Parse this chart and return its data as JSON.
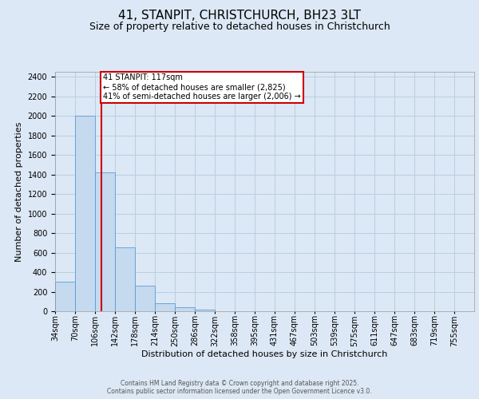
{
  "title_line1": "41, STANPIT, CHRISTCHURCH, BH23 3LT",
  "title_line2": "Size of property relative to detached houses in Christchurch",
  "xlabel": "Distribution of detached houses by size in Christchurch",
  "ylabel": "Number of detached properties",
  "bin_labels": [
    "34sqm",
    "70sqm",
    "106sqm",
    "142sqm",
    "178sqm",
    "214sqm",
    "250sqm",
    "286sqm",
    "322sqm",
    "358sqm",
    "395sqm",
    "431sqm",
    "467sqm",
    "503sqm",
    "539sqm",
    "575sqm",
    "611sqm",
    "647sqm",
    "683sqm",
    "719sqm",
    "755sqm"
  ],
  "bar_heights": [
    300,
    2000,
    1425,
    650,
    260,
    85,
    40,
    20,
    0,
    0,
    0,
    0,
    0,
    0,
    0,
    0,
    0,
    0,
    0,
    0,
    0
  ],
  "bar_color": "#c5d9ef",
  "bar_edge_color": "#5b9bd5",
  "red_line_color": "#cc0000",
  "annotation_text": "41 STANPIT: 117sqm\n← 58% of detached houses are smaller (2,825)\n41% of semi-detached houses are larger (2,006) →",
  "annotation_box_color": "#ffffff",
  "annotation_box_edge_color": "#cc0000",
  "ylim": [
    0,
    2450
  ],
  "yticks": [
    0,
    200,
    400,
    600,
    800,
    1000,
    1200,
    1400,
    1600,
    1800,
    2000,
    2200,
    2400
  ],
  "grid_color": "#b8cfe0",
  "background_color": "#dce8f5",
  "plot_bg_color": "#dce8f5",
  "footer_text": "Contains HM Land Registry data © Crown copyright and database right 2025.\nContains public sector information licensed under the Open Government Licence v3.0.",
  "footer_color": "#555555",
  "title_fontsize": 11,
  "subtitle_fontsize": 9,
  "axis_label_fontsize": 8,
  "tick_fontsize": 7,
  "annotation_fontsize": 7,
  "footer_fontsize": 5.5
}
